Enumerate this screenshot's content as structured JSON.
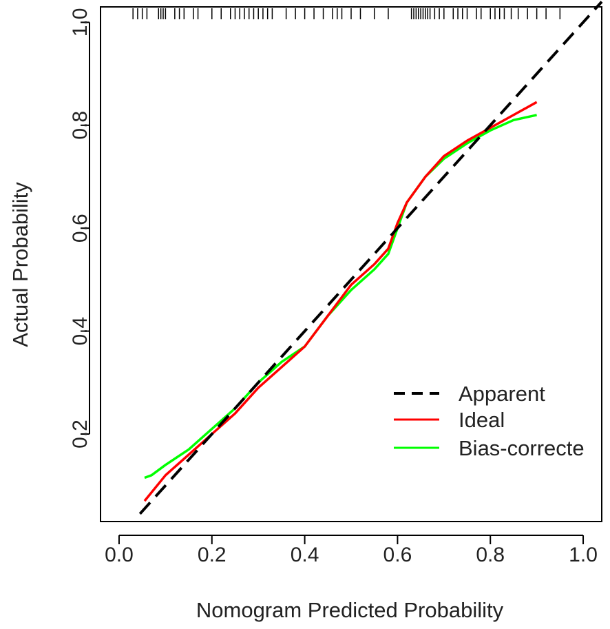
{
  "chart_data": {
    "type": "line",
    "xlabel": "Nomogram Predicted Probability",
    "ylabel": "Actual Probability",
    "xlim": [
      -0.04,
      1.04
    ],
    "ylim": [
      0.03,
      1.03
    ],
    "x_ticks": [
      "0.0",
      "0.2",
      "0.4",
      "0.6",
      "0.8",
      "1.0"
    ],
    "y_ticks": [
      "0.2",
      "0.4",
      "0.6",
      "0.8",
      "1.0"
    ],
    "x_tick_values": [
      0.0,
      0.2,
      0.4,
      0.6,
      0.8,
      1.0
    ],
    "y_tick_values": [
      0.2,
      0.4,
      0.6,
      0.8,
      1.0
    ],
    "legend_position": "bottom-right",
    "grid": false,
    "series": [
      {
        "name": "Apparent",
        "style": "dashed",
        "color": "#000000",
        "x": [
          0.045,
          1.04
        ],
        "y": [
          0.045,
          1.04
        ]
      },
      {
        "name": "Ideal",
        "style": "solid",
        "color": "#ff0000",
        "x": [
          0.055,
          0.1,
          0.15,
          0.2,
          0.25,
          0.3,
          0.35,
          0.4,
          0.45,
          0.5,
          0.55,
          0.58,
          0.6,
          0.62,
          0.66,
          0.7,
          0.75,
          0.8,
          0.85,
          0.9
        ],
        "y": [
          0.07,
          0.12,
          0.16,
          0.2,
          0.24,
          0.29,
          0.33,
          0.37,
          0.43,
          0.49,
          0.53,
          0.56,
          0.61,
          0.65,
          0.7,
          0.74,
          0.77,
          0.795,
          0.82,
          0.845
        ]
      },
      {
        "name": "Bias-correcte",
        "style": "solid",
        "color": "#00ff00",
        "x": [
          0.055,
          0.07,
          0.1,
          0.15,
          0.2,
          0.25,
          0.3,
          0.35,
          0.4,
          0.45,
          0.5,
          0.55,
          0.58,
          0.6,
          0.62,
          0.66,
          0.7,
          0.75,
          0.8,
          0.85,
          0.9
        ],
        "y": [
          0.115,
          0.12,
          0.14,
          0.17,
          0.21,
          0.25,
          0.3,
          0.34,
          0.37,
          0.43,
          0.48,
          0.52,
          0.55,
          0.6,
          0.65,
          0.7,
          0.735,
          0.765,
          0.79,
          0.81,
          0.82
        ]
      }
    ],
    "rug_x": [
      0.03,
      0.04,
      0.05,
      0.06,
      0.085,
      0.09,
      0.095,
      0.1,
      0.12,
      0.13,
      0.14,
      0.16,
      0.17,
      0.2,
      0.22,
      0.24,
      0.25,
      0.26,
      0.27,
      0.28,
      0.29,
      0.3,
      0.31,
      0.32,
      0.33,
      0.36,
      0.38,
      0.4,
      0.42,
      0.44,
      0.46,
      0.47,
      0.48,
      0.5,
      0.52,
      0.55,
      0.58,
      0.63,
      0.635,
      0.64,
      0.645,
      0.65,
      0.655,
      0.66,
      0.665,
      0.67,
      0.68,
      0.69,
      0.7,
      0.72,
      0.73,
      0.74,
      0.75,
      0.77,
      0.78,
      0.8,
      0.81,
      0.82,
      0.83,
      0.845,
      0.86,
      0.88,
      0.9,
      0.92,
      0.95
    ]
  }
}
